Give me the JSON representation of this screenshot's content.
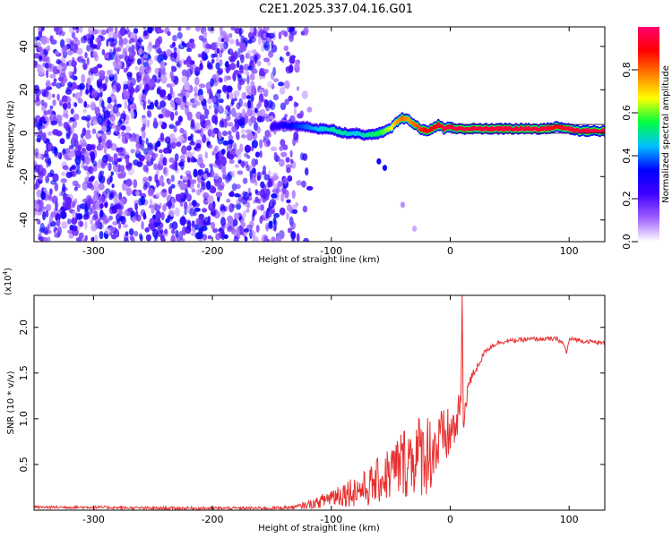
{
  "chart_data": [
    {
      "type": "heatmap",
      "title": "C2E1.2025.337.04.16.G01",
      "xlabel": "Height of straight line (km)",
      "ylabel": "Frequency (Hz)",
      "xlim": [
        -350,
        130
      ],
      "ylim": [
        -50,
        49
      ],
      "xticks": [
        -300,
        -200,
        -100,
        0,
        100
      ],
      "yticks": [
        -40,
        -20,
        0,
        20,
        40
      ],
      "colorbar": {
        "label": "Normalized spectral amplitude",
        "range": [
          0.0,
          1.0
        ],
        "ticks": [
          0.0,
          0.2,
          0.4,
          0.6,
          0.8
        ],
        "tick_labels": [
          "0.0",
          "0.2",
          "0.4",
          "0.6",
          "0.8"
        ],
        "colors": [
          "#ffffff",
          "#a060ff",
          "#4000ff",
          "#0000ff",
          "#00c0ff",
          "#00ff40",
          "#ffff00",
          "#ff8000",
          "#ff0000",
          "#ff0070"
        ]
      },
      "noise_region_x": [
        -350,
        -128
      ],
      "signal_curve": {
        "x": [
          -150,
          -140,
          -130,
          -120,
          -110,
          -100,
          -90,
          -80,
          -70,
          -60,
          -50,
          -45,
          -40,
          -35,
          -30,
          -25,
          -20,
          -15,
          -10,
          -5,
          0,
          5,
          10,
          20,
          40,
          60,
          80,
          90,
          100,
          110,
          130
        ],
        "y": [
          3,
          4,
          3,
          3,
          2,
          2,
          0,
          0,
          -1,
          0,
          2,
          5,
          7,
          6,
          4,
          2,
          1,
          2,
          4,
          2,
          3,
          2,
          2,
          2,
          2,
          2,
          2,
          3,
          2,
          1,
          1
        ],
        "amplitude": [
          0.25,
          0.3,
          0.35,
          0.4,
          0.45,
          0.5,
          0.5,
          0.45,
          0.5,
          0.55,
          0.65,
          0.75,
          0.8,
          0.75,
          0.8,
          0.85,
          0.9,
          0.9,
          0.9,
          0.95,
          0.95,
          0.95,
          0.95,
          0.95,
          0.95,
          0.95,
          0.95,
          0.9,
          0.95,
          0.95,
          0.95
        ]
      },
      "secondary_blobs": [
        {
          "x": -60,
          "y": -13,
          "amplitude": 0.3
        },
        {
          "x": -55,
          "y": -16,
          "amplitude": 0.3
        },
        {
          "x": -40,
          "y": -33,
          "amplitude": 0.08
        },
        {
          "x": -30,
          "y": -44,
          "amplitude": 0.06
        }
      ]
    },
    {
      "type": "line",
      "xlabel": "Height of straight line (km)",
      "ylabel": "SNR (10 * v/v)",
      "y_multiplier_label": "(x10",
      "y_multiplier_exponent": "4",
      "y_multiplier_close": ")",
      "xlim": [
        -350,
        130
      ],
      "ylim": [
        0,
        2.35
      ],
      "xticks": [
        -300,
        -200,
        -100,
        0,
        100
      ],
      "yticks": [
        0.5,
        1.0,
        1.5,
        2.0
      ],
      "ytick_labels": [
        "0.5",
        "1.0",
        "1.5",
        "2.0"
      ],
      "series": [
        {
          "name": "SNR",
          "color": "#e83030",
          "x": [
            -350,
            -300,
            -250,
            -200,
            -150,
            -130,
            -110,
            -100,
            -90,
            -80,
            -70,
            -60,
            -50,
            -40,
            -30,
            -20,
            -10,
            0,
            5,
            9,
            10,
            11,
            13,
            15,
            20,
            25,
            30,
            40,
            50,
            60,
            70,
            80,
            90,
            95,
            98,
            100,
            105,
            110,
            120,
            130
          ],
          "values": [
            0.03,
            0.03,
            0.02,
            0.02,
            0.02,
            0.03,
            0.08,
            0.14,
            0.17,
            0.2,
            0.22,
            0.3,
            0.38,
            0.48,
            0.55,
            0.58,
            0.66,
            0.82,
            0.9,
            1.18,
            2.35,
            0.85,
            1.2,
            1.35,
            1.5,
            1.62,
            1.75,
            1.83,
            1.85,
            1.86,
            1.87,
            1.87,
            1.87,
            1.82,
            1.72,
            1.86,
            1.87,
            1.85,
            1.84,
            1.82
          ],
          "noise_amplitude": [
            0.02,
            0.02,
            0.02,
            0.02,
            0.02,
            0.03,
            0.08,
            0.15,
            0.18,
            0.22,
            0.26,
            0.32,
            0.4,
            0.5,
            0.55,
            0.6,
            0.5,
            0.35,
            0.3,
            0.2,
            0.0,
            0.3,
            0.2,
            0.1,
            0.06,
            0.05,
            0.04,
            0.03,
            0.03,
            0.03,
            0.03,
            0.03,
            0.03,
            0.03,
            0.03,
            0.03,
            0.03,
            0.03,
            0.03,
            0.03
          ]
        }
      ]
    }
  ]
}
